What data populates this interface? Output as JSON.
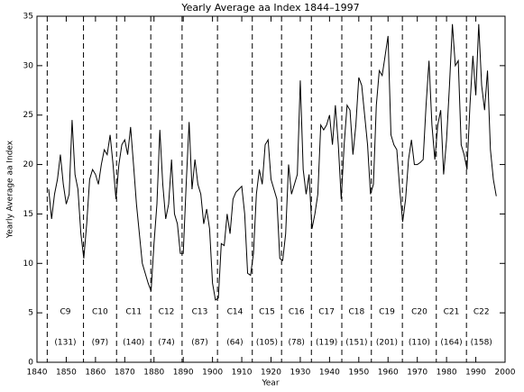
{
  "chart_data": {
    "type": "line",
    "title": "Yearly Average aa Index 1844–1997",
    "x_label": "Year",
    "y_label": "Yearly Average aa Index",
    "color": "#000000",
    "x": [
      1844,
      1845,
      1846,
      1847,
      1848,
      1849,
      1850,
      1851,
      1852,
      1853,
      1854,
      1855,
      1856,
      1857,
      1858,
      1859,
      1860,
      1861,
      1862,
      1863,
      1864,
      1865,
      1866,
      1867,
      1868,
      1869,
      1870,
      1871,
      1872,
      1873,
      1874,
      1875,
      1876,
      1877,
      1878,
      1879,
      1880,
      1881,
      1882,
      1883,
      1884,
      1885,
      1886,
      1887,
      1888,
      1889,
      1890,
      1891,
      1892,
      1893,
      1894,
      1895,
      1896,
      1897,
      1898,
      1899,
      1900,
      1901,
      1902,
      1903,
      1904,
      1905,
      1906,
      1907,
      1908,
      1909,
      1910,
      1911,
      1912,
      1913,
      1914,
      1915,
      1916,
      1917,
      1918,
      1919,
      1920,
      1921,
      1922,
      1923,
      1924,
      1925,
      1926,
      1927,
      1928,
      1929,
      1930,
      1931,
      1932,
      1933,
      1934,
      1935,
      1936,
      1937,
      1938,
      1939,
      1940,
      1941,
      1942,
      1943,
      1944,
      1945,
      1946,
      1947,
      1948,
      1949,
      1950,
      1951,
      1952,
      1953,
      1954,
      1955,
      1956,
      1957,
      1958,
      1959,
      1960,
      1961,
      1962,
      1963,
      1964,
      1965,
      1966,
      1967,
      1968,
      1969,
      1970,
      1971,
      1972,
      1973,
      1974,
      1975,
      1976,
      1977,
      1978,
      1979,
      1980,
      1981,
      1982,
      1983,
      1984,
      1985,
      1986,
      1987,
      1988,
      1989,
      1990,
      1991,
      1992,
      1993,
      1994,
      1995,
      1996,
      1997
    ],
    "values": [
      17.5,
      14.5,
      17,
      18.5,
      21,
      18,
      16,
      17,
      24.5,
      19,
      17.5,
      13,
      10.5,
      14,
      18.5,
      19.5,
      19,
      18,
      20,
      21.5,
      21,
      23,
      20,
      16.5,
      20,
      22,
      22.5,
      21,
      23.8,
      20,
      16,
      13,
      10,
      9,
      8,
      7.2,
      12,
      16,
      23.5,
      18,
      14.5,
      16,
      20.5,
      15,
      14,
      11,
      11,
      18,
      24.3,
      17.5,
      20.5,
      18,
      17,
      14,
      15.5,
      13.5,
      8,
      6.3,
      6.5,
      12,
      11.8,
      15,
      13,
      16.5,
      17.2,
      17.5,
      17.8,
      15,
      9,
      8.8,
      11,
      17,
      19.5,
      18,
      22,
      22.5,
      18.5,
      17.5,
      16.5,
      10.5,
      10.3,
      13,
      20,
      17,
      18,
      19,
      28.5,
      19.5,
      17,
      19,
      13.5,
      15,
      17,
      24,
      23.5,
      24,
      25,
      22,
      26,
      22,
      16.5,
      22,
      26,
      25.5,
      21,
      24,
      28.8,
      28,
      25,
      22,
      17,
      18,
      26,
      29.5,
      29,
      31,
      33,
      23,
      22,
      21.5,
      17.5,
      14.2,
      16.5,
      20.5,
      22.5,
      20,
      20,
      20.2,
      20.5,
      26,
      30.5,
      24,
      20.5,
      24,
      25.5,
      19,
      22.5,
      28,
      34.2,
      30,
      30.5,
      22,
      21,
      19.5,
      26,
      31,
      27,
      34.2,
      28,
      25.5,
      29.5,
      21.5,
      18.5,
      16.8
    ],
    "xlim": [
      1840,
      2000
    ],
    "xticks": [
      1840,
      1850,
      1860,
      1870,
      1880,
      1890,
      1900,
      1910,
      1920,
      1930,
      1940,
      1950,
      1960,
      1970,
      1980,
      1990,
      2000
    ],
    "ylim": [
      0,
      35
    ],
    "yticks": [
      0,
      5,
      10,
      15,
      20,
      25,
      30,
      35
    ],
    "cycle_starts": [
      1843.5,
      1855.9,
      1867.2,
      1878.9,
      1889.6,
      1901.7,
      1913.6,
      1923.6,
      1933.8,
      1944.2,
      1954.3,
      1964.9,
      1976.5,
      1986.8
    ],
    "cycles": [
      {
        "name": "C9",
        "max": "(131)"
      },
      {
        "name": "C10",
        "max": "(97)"
      },
      {
        "name": "C11",
        "max": "(140)"
      },
      {
        "name": "C12",
        "max": "(74)"
      },
      {
        "name": "C13",
        "max": "(87)"
      },
      {
        "name": "C14",
        "max": "(64)"
      },
      {
        "name": "C15",
        "max": "(105)"
      },
      {
        "name": "C16",
        "max": "(78)"
      },
      {
        "name": "C17",
        "max": "(119)"
      },
      {
        "name": "C18",
        "max": "(151)"
      },
      {
        "name": "C19",
        "max": "(201)"
      },
      {
        "name": "C20",
        "max": "(110)"
      },
      {
        "name": "C21",
        "max": "(164)"
      },
      {
        "name": "C22",
        "max": "(158)"
      }
    ]
  }
}
